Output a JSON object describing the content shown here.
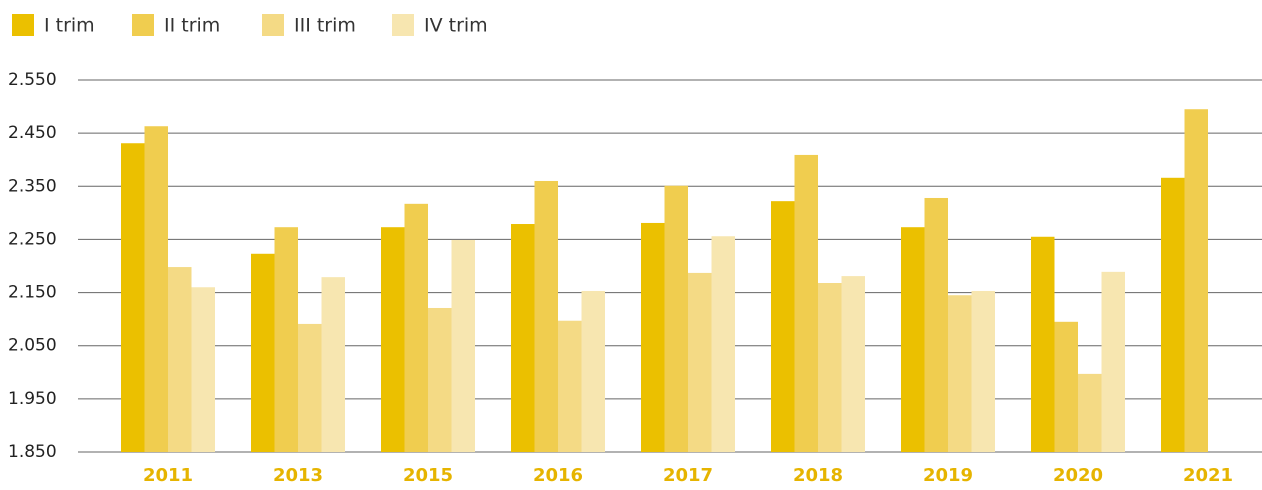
{
  "chart_data": {
    "type": "bar",
    "categories": [
      "2011",
      "2013",
      "2015",
      "2016",
      "2017",
      "2018",
      "2019",
      "2020",
      "2021"
    ],
    "series": [
      {
        "name": "I trim",
        "color": "#ebc000",
        "values": [
          2431,
          2223,
          2273,
          2279,
          2281,
          2322,
          2273,
          2255,
          2366
        ]
      },
      {
        "name": "II trim",
        "color": "#f0cd4f",
        "values": [
          2463,
          2273,
          2317,
          2360,
          2351,
          2409,
          2328,
          2095,
          2495
        ]
      },
      {
        "name": "III trim",
        "color": "#f4da85",
        "values": [
          2198,
          2091,
          2121,
          2097,
          2187,
          2168,
          2145,
          1997,
          null
        ]
      },
      {
        "name": "IV trim",
        "color": "#f7e6b0",
        "values": [
          2160,
          2179,
          2249,
          2153,
          2256,
          2181,
          2153,
          2189,
          null
        ]
      }
    ],
    "ylim": [
      1850,
      2550
    ],
    "yticks": [
      {
        "value": 1850,
        "label": "1.850"
      },
      {
        "value": 1950,
        "label": "1.950"
      },
      {
        "value": 2050,
        "label": "2.050"
      },
      {
        "value": 2150,
        "label": "2.150"
      },
      {
        "value": 2250,
        "label": "2.250"
      },
      {
        "value": 2350,
        "label": "2.350"
      },
      {
        "value": 2450,
        "label": "2.450"
      },
      {
        "value": 2550,
        "label": "2.550"
      }
    ],
    "grid": true,
    "legend": "top-left"
  }
}
